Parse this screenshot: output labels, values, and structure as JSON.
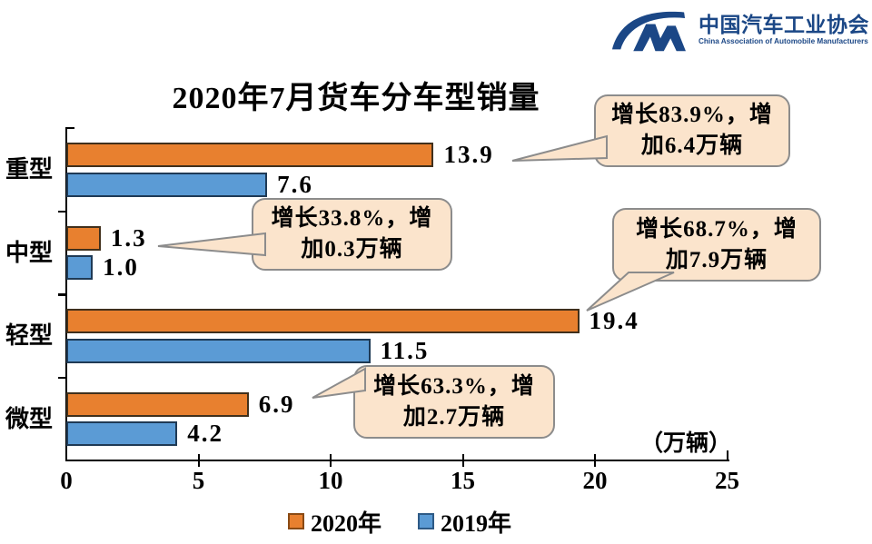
{
  "logo": {
    "org_zh": "中国汽车工业协会",
    "org_en": "China Association of Automobile Manufacturers",
    "color": "#1B4786"
  },
  "chart_data": {
    "type": "bar",
    "orientation": "horizontal",
    "title": "2020年7月货车分车型销量",
    "unit_label": "（万辆）",
    "categories": [
      "重型",
      "中型",
      "轻型",
      "微型"
    ],
    "series": [
      {
        "name": "2020年",
        "color": "#E8802F",
        "border": "#40301C",
        "swatch_border": "#8A4A14",
        "values": [
          13.9,
          1.3,
          19.4,
          6.9
        ],
        "labels": [
          "13.9",
          "1.3",
          "19.4",
          "6.9"
        ]
      },
      {
        "name": "2019年",
        "color": "#5B9BD5",
        "border": "#1F3A55",
        "swatch_border": "#2E5A86",
        "values": [
          7.6,
          1.0,
          11.5,
          4.2
        ],
        "labels": [
          "7.6",
          "1.0",
          "11.5",
          "4.2"
        ]
      }
    ],
    "xlim": [
      0,
      25
    ],
    "x_ticks": [
      0,
      5,
      10,
      15,
      20,
      25
    ],
    "x_tick_labels": [
      "0",
      "5",
      "10",
      "15",
      "20",
      "25"
    ],
    "grid": false,
    "legend_position": "bottom",
    "annotation_style": {
      "fill": "#FBE4CC",
      "border": "#8C8C8C"
    },
    "annotations": [
      {
        "category": "重型",
        "lines": [
          "增长83.9%，增",
          "加6.4万辆"
        ]
      },
      {
        "category": "中型",
        "lines": [
          "增长33.8%，增",
          "加0.3万辆"
        ]
      },
      {
        "category": "轻型",
        "lines": [
          "增长68.7%，增",
          "加7.9万辆"
        ]
      },
      {
        "category": "微型",
        "lines": [
          "增长63.3%，增",
          "加2.7万辆"
        ]
      }
    ]
  }
}
